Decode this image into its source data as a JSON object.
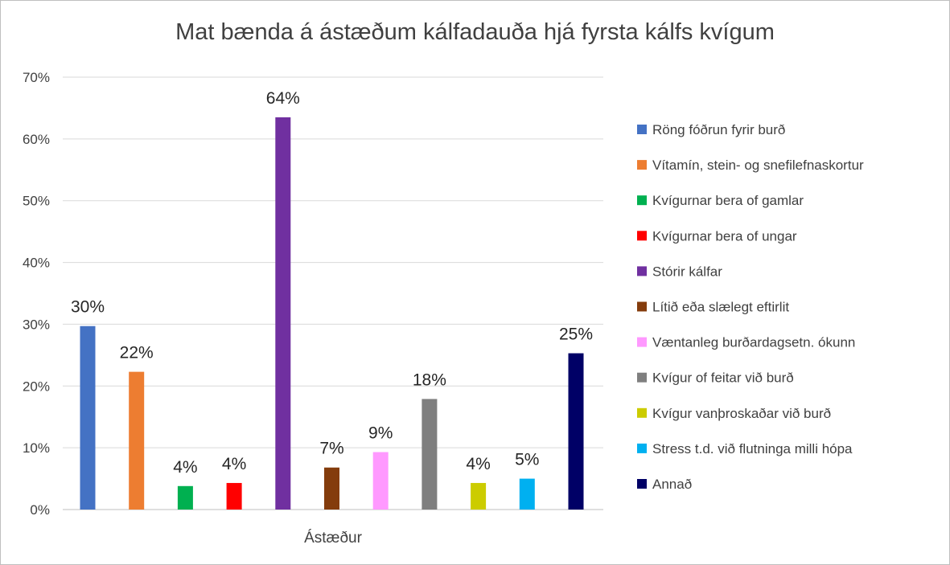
{
  "chart_data": {
    "type": "bar",
    "title": "Mat bænda á ástæðum kálfadauða hjá fyrsta kálfs kvígum",
    "xlabel": "Ástæður",
    "ylabel": "",
    "ylim": [
      0,
      70
    ],
    "yticks": [
      "0%",
      "10%",
      "20%",
      "30%",
      "40%",
      "50%",
      "60%",
      "70%"
    ],
    "grid": true,
    "legend_position": "right",
    "series": [
      {
        "name": "Röng fóðrun fyrir burð",
        "value": 29.7,
        "label": "30%",
        "color": "#4472c4"
      },
      {
        "name": "Vítamín, stein- og snefilefnaskortur",
        "value": 22.3,
        "label": "22%",
        "color": "#ed7d31"
      },
      {
        "name": "Kvígurnar bera of gamlar",
        "value": 3.8,
        "label": "4%",
        "color": "#00b050"
      },
      {
        "name": "Kvígurnar bera of ungar",
        "value": 4.3,
        "label": "4%",
        "color": "#ff0000"
      },
      {
        "name": "Stórir kálfar",
        "value": 63.5,
        "label": "64%",
        "color": "#7030a0"
      },
      {
        "name": "Lítið eða slælegt eftirlit",
        "value": 6.8,
        "label": "7%",
        "color": "#843c0c"
      },
      {
        "name": "Væntanleg burðardagsetn. ókunn",
        "value": 9.3,
        "label": "9%",
        "color": "#ff99ff"
      },
      {
        "name": "Kvígur of feitar við burð",
        "value": 17.9,
        "label": "18%",
        "color": "#7f7f7f"
      },
      {
        "name": "Kvígur vanþroskaðar við burð",
        "value": 4.3,
        "label": "4%",
        "color": "#cccc00"
      },
      {
        "name": "Stress t.d. við flutninga milli hópa",
        "value": 5.0,
        "label": "5%",
        "color": "#00b0f0"
      },
      {
        "name": "Annað",
        "value": 25.3,
        "label": "25%",
        "color": "#000066"
      }
    ]
  }
}
